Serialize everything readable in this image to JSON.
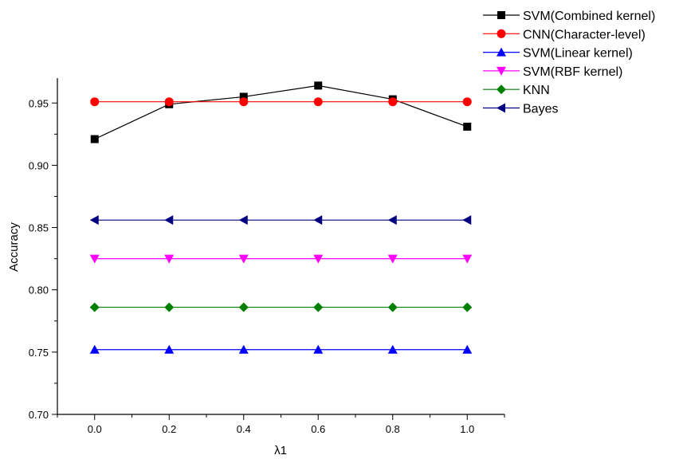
{
  "chart_data": {
    "type": "line",
    "xlabel": "λ1",
    "ylabel": "Accuracy",
    "xlim": [
      -0.1,
      1.1
    ],
    "ylim": [
      0.7,
      0.97
    ],
    "x": [
      0.0,
      0.2,
      0.4,
      0.6,
      0.8,
      1.0
    ],
    "x_ticks": [
      "0.0",
      "0.2",
      "0.4",
      "0.6",
      "0.8",
      "1.0"
    ],
    "y_ticks": [
      "0.70",
      "0.75",
      "0.80",
      "0.85",
      "0.90",
      "0.95"
    ],
    "grid": false,
    "legend_position": "top-right, outside plot",
    "series": [
      {
        "name": "SVM(Combined kernel)",
        "color": "#000000",
        "marker": "square",
        "values": [
          0.921,
          0.949,
          0.955,
          0.964,
          0.953,
          0.931
        ]
      },
      {
        "name": "CNN(Character-level)",
        "color": "#ff0000",
        "marker": "circle",
        "values": [
          0.951,
          0.951,
          0.951,
          0.951,
          0.951,
          0.951
        ]
      },
      {
        "name": "SVM(Linear kernel)",
        "color": "#0000ff",
        "marker": "triangle-up",
        "values": [
          0.752,
          0.752,
          0.752,
          0.752,
          0.752,
          0.752
        ]
      },
      {
        "name": "SVM(RBF kernel)",
        "color": "#ff00ff",
        "marker": "triangle-down",
        "values": [
          0.825,
          0.825,
          0.825,
          0.825,
          0.825,
          0.825
        ]
      },
      {
        "name": "KNN",
        "color": "#008000",
        "marker": "diamond",
        "values": [
          0.786,
          0.786,
          0.786,
          0.786,
          0.786,
          0.786
        ]
      },
      {
        "name": "Bayes",
        "color": "#000080",
        "marker": "triangle-left",
        "values": [
          0.856,
          0.856,
          0.856,
          0.856,
          0.856,
          0.856
        ]
      }
    ]
  }
}
